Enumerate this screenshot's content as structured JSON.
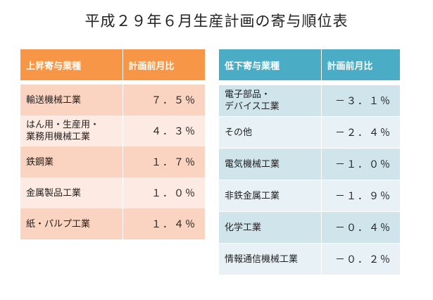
{
  "title": "平成２９年６月生産計画の寄与順位表",
  "left_table": {
    "headers": [
      "上昇寄与業種",
      "計画前月比"
    ],
    "rows": [
      {
        "name": "輸送機械工業",
        "value": "７．５％"
      },
      {
        "name": "はん用・生産用・\n業務用機械工業",
        "value": "４．３％"
      },
      {
        "name": "鉄鋼業",
        "value": "１．７％"
      },
      {
        "name": "金属製品工業",
        "value": "１．０％"
      },
      {
        "name": "紙・パルプ工業",
        "value": "１．４％"
      }
    ]
  },
  "right_table": {
    "headers": [
      "低下寄与業種",
      "計画前月比"
    ],
    "rows": [
      {
        "name": "電子部品・\nデバイス工業",
        "value": "－３．１％"
      },
      {
        "name": "その他",
        "value": "－２．４％"
      },
      {
        "name": "電気機械工業",
        "value": "－１．０％"
      },
      {
        "name": "非鉄金属工業",
        "value": "－１．９％"
      },
      {
        "name": "化学工業",
        "value": "－０．４％"
      },
      {
        "name": "情報通信機械工業",
        "value": "－０．２％"
      }
    ]
  }
}
